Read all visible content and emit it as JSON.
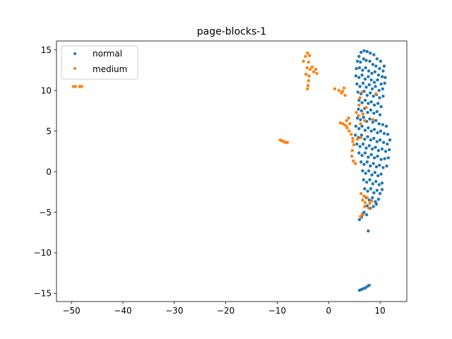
{
  "chart_data": {
    "type": "scatter",
    "title": "page-blocks-1",
    "xlabel": "",
    "ylabel": "",
    "xlim": [
      -52.9,
      15.2
    ],
    "ylim": [
      -16.0,
      16.1
    ],
    "xticks": [
      -50,
      -40,
      -30,
      -20,
      -10,
      0,
      10
    ],
    "yticks": [
      -15,
      -10,
      -5,
      0,
      5,
      10,
      15
    ],
    "xtick_labels": [
      "−50",
      "−40",
      "−30",
      "−20",
      "−10",
      "0",
      "10"
    ],
    "ytick_labels": [
      "−15",
      "−10",
      "−5",
      "0",
      "5",
      "10",
      "15"
    ],
    "grid": false,
    "legend": {
      "placement": "top-left",
      "entries": [
        "normal",
        "medium"
      ]
    },
    "series": [
      {
        "name": "normal",
        "color": "#1f77b4",
        "points": [
          [
            5.9,
            14.2
          ],
          [
            6.3,
            14.7
          ],
          [
            6.9,
            14.9
          ],
          [
            7.5,
            14.8
          ],
          [
            8.1,
            14.6
          ],
          [
            8.8,
            14.4
          ],
          [
            9.4,
            13.9
          ],
          [
            10.1,
            13.6
          ],
          [
            10.8,
            13.0
          ],
          [
            5.6,
            13.6
          ],
          [
            6.2,
            13.5
          ],
          [
            6.8,
            13.9
          ],
          [
            7.3,
            13.7
          ],
          [
            8.0,
            13.6
          ],
          [
            8.6,
            13.2
          ],
          [
            9.2,
            13.0
          ],
          [
            9.9,
            12.7
          ],
          [
            10.6,
            12.4
          ],
          [
            5.4,
            12.7
          ],
          [
            6.0,
            12.8
          ],
          [
            6.6,
            12.5
          ],
          [
            7.2,
            12.8
          ],
          [
            7.8,
            12.4
          ],
          [
            8.4,
            12.1
          ],
          [
            9.0,
            12.3
          ],
          [
            9.7,
            11.9
          ],
          [
            10.4,
            11.7
          ],
          [
            11.0,
            11.6
          ],
          [
            5.3,
            11.8
          ],
          [
            5.9,
            11.6
          ],
          [
            6.5,
            11.9
          ],
          [
            7.1,
            11.4
          ],
          [
            7.7,
            11.7
          ],
          [
            8.3,
            11.3
          ],
          [
            8.9,
            11.0
          ],
          [
            9.5,
            11.3
          ],
          [
            10.2,
            10.8
          ],
          [
            10.9,
            10.9
          ],
          [
            5.5,
            10.8
          ],
          [
            6.1,
            10.5
          ],
          [
            6.7,
            10.9
          ],
          [
            7.3,
            10.4
          ],
          [
            7.9,
            10.7
          ],
          [
            8.5,
            10.2
          ],
          [
            9.1,
            10.5
          ],
          [
            9.8,
            10.0
          ],
          [
            10.5,
            10.2
          ],
          [
            5.7,
            9.8
          ],
          [
            6.3,
            9.6
          ],
          [
            6.9,
            9.9
          ],
          [
            7.5,
            9.4
          ],
          [
            8.1,
            9.7
          ],
          [
            8.7,
            9.3
          ],
          [
            9.3,
            9.5
          ],
          [
            9.9,
            9.1
          ],
          [
            10.6,
            9.3
          ],
          [
            5.9,
            8.8
          ],
          [
            6.5,
            8.5
          ],
          [
            7.1,
            8.8
          ],
          [
            7.7,
            8.4
          ],
          [
            8.3,
            8.6
          ],
          [
            8.9,
            8.2
          ],
          [
            9.6,
            8.4
          ],
          [
            10.2,
            8.0
          ],
          [
            5.8,
            7.7
          ],
          [
            6.4,
            7.5
          ],
          [
            7.0,
            7.8
          ],
          [
            7.6,
            7.3
          ],
          [
            8.2,
            7.6
          ],
          [
            8.8,
            7.2
          ],
          [
            9.4,
            7.4
          ],
          [
            10.0,
            7.0
          ],
          [
            5.6,
            6.6
          ],
          [
            6.2,
            6.4
          ],
          [
            6.8,
            6.7
          ],
          [
            7.4,
            6.2
          ],
          [
            8.0,
            6.5
          ],
          [
            8.6,
            6.1
          ],
          [
            9.2,
            6.3
          ],
          [
            9.8,
            5.9
          ],
          [
            10.5,
            5.8
          ],
          [
            11.2,
            5.6
          ],
          [
            5.3,
            5.6
          ],
          [
            5.9,
            5.3
          ],
          [
            6.5,
            5.6
          ],
          [
            7.1,
            5.1
          ],
          [
            7.7,
            5.4
          ],
          [
            8.3,
            5.0
          ],
          [
            8.9,
            5.2
          ],
          [
            9.5,
            4.8
          ],
          [
            10.1,
            5.0
          ],
          [
            10.8,
            4.7
          ],
          [
            11.5,
            4.6
          ],
          [
            5.2,
            4.5
          ],
          [
            5.8,
            4.2
          ],
          [
            6.4,
            4.5
          ],
          [
            7.0,
            4.0
          ],
          [
            7.6,
            4.3
          ],
          [
            8.2,
            3.9
          ],
          [
            8.8,
            4.1
          ],
          [
            9.4,
            3.7
          ],
          [
            10.0,
            3.9
          ],
          [
            10.7,
            3.6
          ],
          [
            11.4,
            3.4
          ],
          [
            11.9,
            3.9
          ],
          [
            5.5,
            3.4
          ],
          [
            6.1,
            3.1
          ],
          [
            6.7,
            3.4
          ],
          [
            7.3,
            2.9
          ],
          [
            7.9,
            3.2
          ],
          [
            8.5,
            2.8
          ],
          [
            9.1,
            3.0
          ],
          [
            9.7,
            2.6
          ],
          [
            10.4,
            2.8
          ],
          [
            11.1,
            2.5
          ],
          [
            11.8,
            2.7
          ],
          [
            5.9,
            2.3
          ],
          [
            6.5,
            2.0
          ],
          [
            7.1,
            2.3
          ],
          [
            7.7,
            1.8
          ],
          [
            8.3,
            2.1
          ],
          [
            8.9,
            1.7
          ],
          [
            9.5,
            1.9
          ],
          [
            10.2,
            1.5
          ],
          [
            10.9,
            1.6
          ],
          [
            11.6,
            1.7
          ],
          [
            6.3,
            1.2
          ],
          [
            6.9,
            0.9
          ],
          [
            7.5,
            1.2
          ],
          [
            8.1,
            0.7
          ],
          [
            8.7,
            1.0
          ],
          [
            9.3,
            0.6
          ],
          [
            9.9,
            0.8
          ],
          [
            10.6,
            0.5
          ],
          [
            11.3,
            0.7
          ],
          [
            6.6,
            0.1
          ],
          [
            7.2,
            -0.2
          ],
          [
            7.8,
            0.1
          ],
          [
            8.4,
            -0.4
          ],
          [
            9.0,
            -0.1
          ],
          [
            9.6,
            -0.5
          ],
          [
            10.2,
            -0.3
          ],
          [
            6.8,
            -1.0
          ],
          [
            7.4,
            -1.3
          ],
          [
            8.0,
            -1.0
          ],
          [
            8.6,
            -1.5
          ],
          [
            9.2,
            -1.2
          ],
          [
            9.8,
            -1.6
          ],
          [
            10.4,
            -1.4
          ],
          [
            7.0,
            -2.1
          ],
          [
            7.6,
            -2.4
          ],
          [
            8.2,
            -2.1
          ],
          [
            8.8,
            -2.6
          ],
          [
            9.4,
            -2.3
          ],
          [
            10.0,
            -2.7
          ],
          [
            10.4,
            -2.2
          ],
          [
            7.3,
            -3.2
          ],
          [
            7.9,
            -3.5
          ],
          [
            8.5,
            -3.2
          ],
          [
            9.1,
            -3.7
          ],
          [
            9.7,
            -3.4
          ],
          [
            7.5,
            -4.2
          ],
          [
            8.1,
            -4.5
          ],
          [
            8.7,
            -4.3
          ],
          [
            9.3,
            -4.0
          ],
          [
            6.9,
            -5.0
          ],
          [
            7.4,
            -5.3
          ],
          [
            6.4,
            -5.6
          ],
          [
            6.0,
            -5.9
          ],
          [
            6.6,
            -5.2
          ],
          [
            7.7,
            -7.3
          ],
          [
            6.0,
            -14.6
          ],
          [
            6.4,
            -14.5
          ],
          [
            6.8,
            -14.4
          ],
          [
            7.2,
            -14.3
          ],
          [
            7.6,
            -14.1
          ],
          [
            7.9,
            -14.0
          ]
        ]
      },
      {
        "name": "medium",
        "color": "#ff7f0e",
        "points": [
          [
            -49.6,
            10.5
          ],
          [
            -49.2,
            10.5
          ],
          [
            -48.4,
            10.5
          ],
          [
            -48.0,
            10.5
          ],
          [
            -4.9,
            13.6
          ],
          [
            -4.5,
            14.2
          ],
          [
            -4.1,
            14.6
          ],
          [
            -3.7,
            14.3
          ],
          [
            -3.9,
            13.5
          ],
          [
            -4.2,
            12.8
          ],
          [
            -3.6,
            12.6
          ],
          [
            -3.2,
            12.9
          ],
          [
            -2.9,
            12.3
          ],
          [
            -2.5,
            12.6
          ],
          [
            -2.3,
            12.1
          ],
          [
            -3.8,
            11.8
          ],
          [
            -4.4,
            12.0
          ],
          [
            -3.9,
            11.2
          ],
          [
            -4.0,
            10.6
          ],
          [
            -4.1,
            10.2
          ],
          [
            -9.4,
            3.9
          ],
          [
            -9.1,
            3.8
          ],
          [
            -8.7,
            3.7
          ],
          [
            -8.4,
            3.6
          ],
          [
            -8.0,
            3.6
          ],
          [
            1.2,
            10.2
          ],
          [
            2.0,
            10.0
          ],
          [
            2.5,
            9.7
          ],
          [
            3.0,
            10.3
          ],
          [
            3.2,
            9.4
          ],
          [
            2.7,
            9.9
          ],
          [
            3.5,
            6.3
          ],
          [
            3.9,
            6.6
          ],
          [
            4.1,
            5.9
          ],
          [
            2.3,
            6.0
          ],
          [
            2.8,
            5.9
          ],
          [
            3.3,
            5.7
          ],
          [
            3.6,
            5.4
          ],
          [
            4.0,
            5.0
          ],
          [
            4.4,
            4.6
          ],
          [
            4.7,
            4.1
          ],
          [
            4.9,
            3.3
          ],
          [
            4.6,
            2.6
          ],
          [
            4.5,
            1.9
          ],
          [
            4.8,
            1.3
          ],
          [
            5.2,
            1.0
          ],
          [
            4.7,
            3.7
          ],
          [
            5.6,
            4.0
          ],
          [
            6.3,
            4.2
          ],
          [
            5.4,
            7.3
          ],
          [
            5.8,
            6.9
          ],
          [
            6.2,
            5.9
          ],
          [
            6.7,
            7.1
          ],
          [
            7.0,
            6.3
          ],
          [
            5.9,
            8.2
          ],
          [
            6.1,
            9.1
          ],
          [
            6.5,
            9.8
          ],
          [
            7.3,
            7.9
          ],
          [
            8.6,
            6.4
          ],
          [
            9.2,
            9.6
          ],
          [
            6.3,
            -2.7
          ],
          [
            6.6,
            -3.5
          ],
          [
            7.1,
            -3.8
          ],
          [
            7.5,
            -3.2
          ],
          [
            8.0,
            -3.9
          ],
          [
            7.8,
            -4.5
          ],
          [
            7.0,
            -4.3
          ],
          [
            6.7,
            -5.3
          ],
          [
            6.2,
            -5.5
          ],
          [
            8.4,
            -3.6
          ],
          [
            6.9,
            -3.0
          ]
        ]
      }
    ]
  }
}
